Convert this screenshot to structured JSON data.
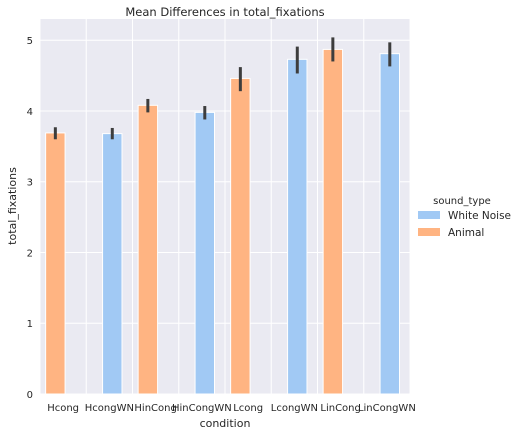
{
  "chart_data": {
    "type": "bar",
    "title": "Mean Differences in total_fixations",
    "xlabel": "condition",
    "ylabel": "total_fixations",
    "ylim": [
      0,
      5.3
    ],
    "yticks": [
      0,
      1,
      2,
      3,
      4,
      5
    ],
    "grid": true,
    "categories": [
      "Hcong",
      "HcongWN",
      "HinCong",
      "HinCongWN",
      "Lcong",
      "LcongWN",
      "LinCong",
      "LinCongWN"
    ],
    "legend": {
      "title": "sound_type",
      "placement": "right",
      "entries": [
        "White Noise",
        "Animal"
      ]
    },
    "series": [
      {
        "name": "White Noise",
        "color": "#a1c9f4",
        "values": [
          null,
          3.68,
          null,
          3.98,
          null,
          4.73,
          null,
          4.81
        ],
        "ci_low": [
          null,
          3.6,
          null,
          3.88,
          null,
          4.53,
          null,
          4.63
        ],
        "ci_high": [
          null,
          3.76,
          null,
          4.07,
          null,
          4.91,
          null,
          4.97
        ]
      },
      {
        "name": "Animal",
        "color": "#ffb482",
        "values": [
          3.69,
          null,
          4.08,
          null,
          4.46,
          null,
          4.87,
          null
        ],
        "ci_low": [
          3.6,
          null,
          3.98,
          null,
          4.28,
          null,
          4.7,
          null
        ],
        "ci_high": [
          3.77,
          null,
          4.17,
          null,
          4.62,
          null,
          5.04,
          null
        ]
      }
    ]
  }
}
